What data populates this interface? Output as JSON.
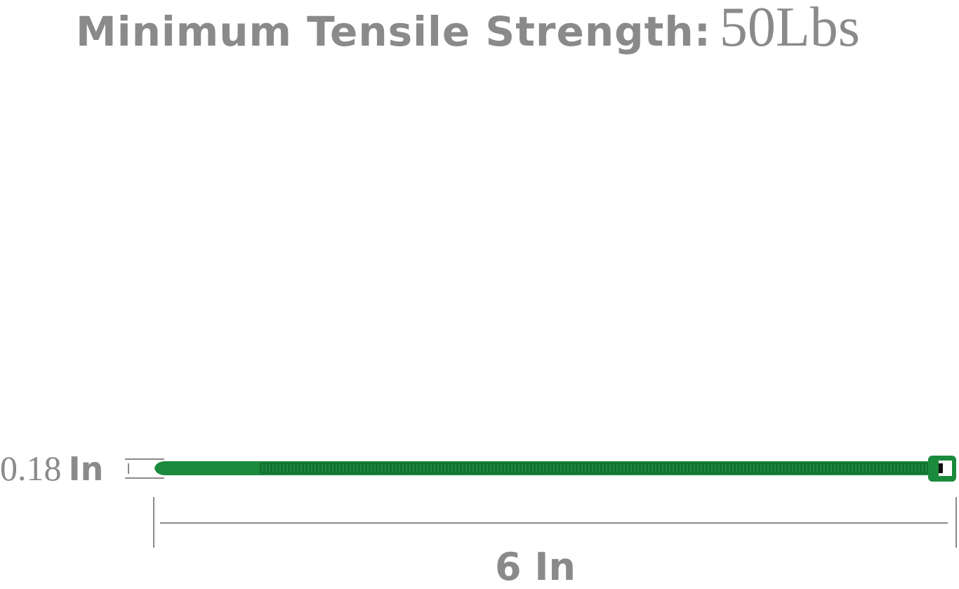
{
  "title": {
    "label": "Minimum Tensile Strength:",
    "value": "50Lbs"
  },
  "width_dimension": {
    "number": "0.18",
    "unit": "In"
  },
  "length_dimension": "6 In",
  "colors": {
    "tie": "#1b8a3d",
    "tie_dark": "#126b2c",
    "text": "#8a8a8a"
  }
}
